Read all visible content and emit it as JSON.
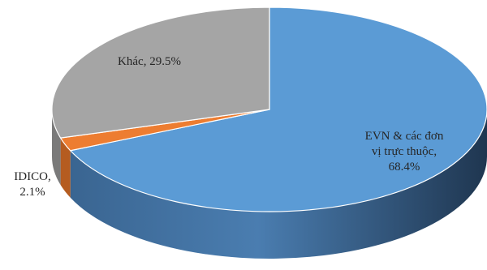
{
  "chart_data": {
    "type": "pie",
    "style": "3d",
    "start_angle_deg": 0,
    "direction": "clockwise",
    "slices": [
      {
        "name": "EVN & các đơn vị trực thuộc",
        "value": 68.4,
        "label_lines": [
          "EVN & các đơn",
          "vị trực thuộc,",
          "68.4%"
        ],
        "color": "#5b9bd5",
        "side_color": "#3f6f9c"
      },
      {
        "name": "IDICO",
        "value": 2.1,
        "label_lines": [
          "IDICO,",
          "2.1%"
        ],
        "color": "#ed7d31",
        "side_color": "#b55c20"
      },
      {
        "name": "Khác",
        "value": 29.5,
        "label_lines": [
          "Khác, 29.5%"
        ],
        "color": "#a5a5a5",
        "side_color": "#7a7a7a"
      }
    ]
  }
}
